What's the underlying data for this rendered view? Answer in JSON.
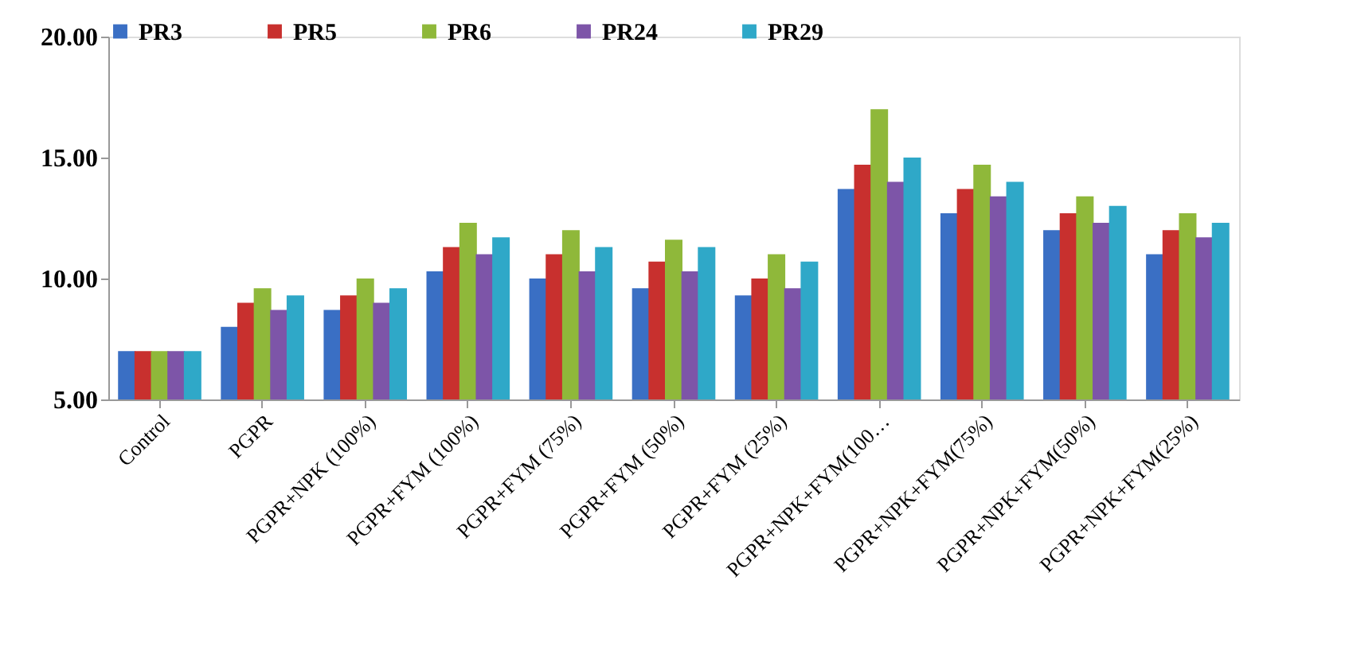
{
  "chart_data": {
    "type": "bar",
    "categories": [
      "Control",
      "PGPR",
      "PGPR+NPK (100%)",
      "PGPR+FYM (100%)",
      "PGPR+FYM (75%)",
      "PGPR+FYM (50%)",
      "PGPR+FYM (25%)",
      "PGPR+NPK+FYM(100…",
      "PGPR+NPK+FYM(75%)",
      "PGPR+NPK+FYM(50%)",
      "PGPR+NPK+FYM(25%)"
    ],
    "series": [
      {
        "name": "PR3",
        "color": "#3a6fc4",
        "values": [
          7.0,
          8.0,
          8.7,
          10.3,
          10.0,
          9.6,
          9.3,
          13.7,
          12.7,
          12.0,
          11.0
        ]
      },
      {
        "name": "PR5",
        "color": "#c8302e",
        "values": [
          7.0,
          9.0,
          9.3,
          11.3,
          11.0,
          10.7,
          10.0,
          14.7,
          13.7,
          12.7,
          12.0
        ]
      },
      {
        "name": "PR6",
        "color": "#8fb83a",
        "values": [
          7.0,
          9.6,
          10.0,
          12.3,
          12.0,
          11.6,
          11.0,
          17.0,
          14.7,
          13.4,
          12.7
        ]
      },
      {
        "name": "PR24",
        "color": "#7d55a8",
        "values": [
          7.0,
          8.7,
          9.0,
          11.0,
          10.3,
          10.3,
          9.6,
          14.0,
          13.4,
          12.3,
          11.7
        ]
      },
      {
        "name": "PR29",
        "color": "#2fa8c8",
        "values": [
          7.0,
          9.3,
          9.6,
          11.7,
          11.3,
          11.3,
          10.7,
          15.0,
          14.0,
          13.0,
          12.3
        ]
      }
    ],
    "ylim": [
      5,
      20
    ],
    "yticks": [
      {
        "value": 5,
        "label": "5.00"
      },
      {
        "value": 10,
        "label": "10.00"
      },
      {
        "value": 15,
        "label": "15.00"
      },
      {
        "value": 20,
        "label": "20.00"
      }
    ],
    "grid": false,
    "legend": "top"
  }
}
